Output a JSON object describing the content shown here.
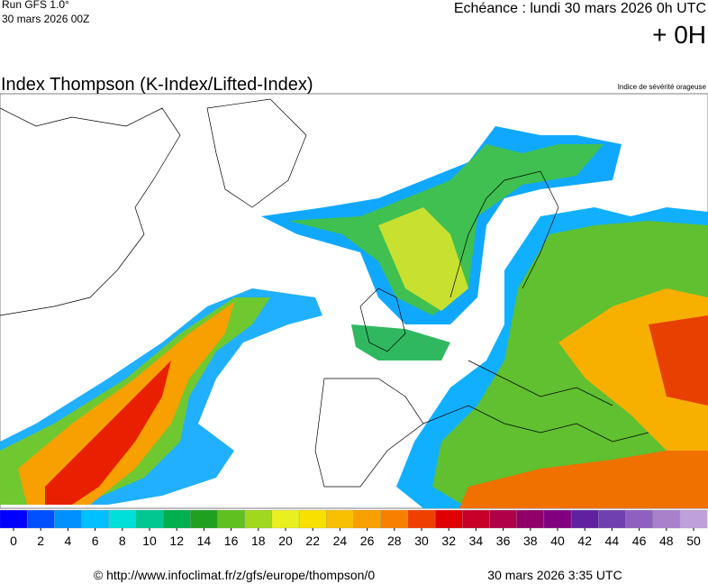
{
  "header": {
    "run": "Run GFS 1.0°",
    "run_date": "30 mars 2026 00Z",
    "valid": "Echéance : lundi 30 mars 2026 0h UTC",
    "lead": "+ 0H"
  },
  "title": "Index Thompson (K-Index/Lifted-Index)",
  "subtitle": "Indice de sévérité orageuse",
  "legend": {
    "ticks": [
      0,
      2,
      4,
      6,
      8,
      10,
      12,
      14,
      16,
      18,
      20,
      22,
      24,
      26,
      28,
      30,
      32,
      34,
      36,
      38,
      40,
      42,
      44,
      46,
      48,
      50
    ],
    "colors": [
      "#0000ff",
      "#0050ff",
      "#0090ff",
      "#00c0ff",
      "#00e0d8",
      "#00c890",
      "#00b050",
      "#20a020",
      "#60c020",
      "#a0d820",
      "#e8f020",
      "#f8e000",
      "#f8c000",
      "#f8a000",
      "#f88000",
      "#f04000",
      "#e00000",
      "#c80028",
      "#b00048",
      "#900068",
      "#800080",
      "#6020a0",
      "#7040b0",
      "#9060c0",
      "#a880cc",
      "#c0a0d8"
    ]
  },
  "footer": {
    "url": "© http://www.infoclimat.fr/z/gfs/europe/thompson/0",
    "generated": "30 mars 2026  3:35 UTC"
  }
}
